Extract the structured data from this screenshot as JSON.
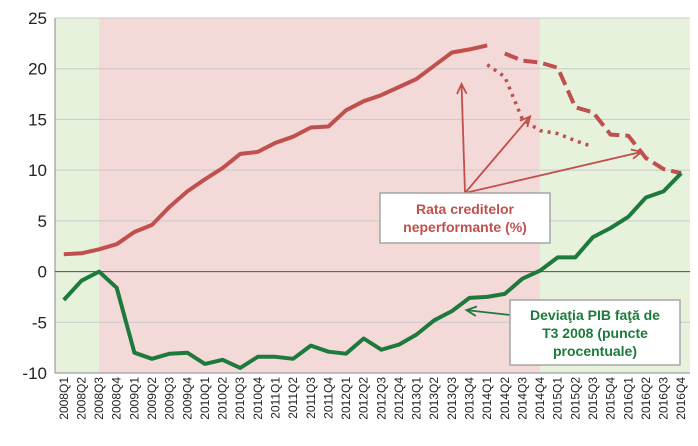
{
  "chart_data": {
    "type": "line",
    "x": [
      "2008Q1",
      "2008Q2",
      "2008Q3",
      "2008Q4",
      "2009Q1",
      "2009Q2",
      "2009Q3",
      "2009Q4",
      "2010Q1",
      "2010Q2",
      "2010Q3",
      "2010Q4",
      "2011Q1",
      "2011Q2",
      "2011Q3",
      "2011Q4",
      "2012Q1",
      "2012Q2",
      "2012Q3",
      "2012Q4",
      "2013Q1",
      "2013Q2",
      "2013Q3",
      "2013Q4",
      "2014Q1",
      "2014Q2",
      "2014Q3",
      "2014Q4",
      "2015Q1",
      "2015Q2",
      "2015Q3",
      "2015Q4",
      "2016Q1",
      "2016Q2",
      "2016Q3",
      "2016Q4"
    ],
    "ylim": [
      -10,
      25
    ],
    "yticks": [
      -10,
      -5,
      0,
      5,
      10,
      15,
      20,
      25
    ],
    "grid": true,
    "shaded_regions": [
      {
        "from": "2008Q1",
        "to": "2008Q3",
        "color": "#e6f2dc"
      },
      {
        "from": "2008Q3",
        "to": "2014Q4",
        "color": "#f4d9d9"
      },
      {
        "from": "2014Q4",
        "to": "2016Q4",
        "color": "#e6f2dc"
      }
    ],
    "series": [
      {
        "style": "solid",
        "color": "#c0504d",
        "values": [
          1.7,
          1.8,
          2.2,
          2.7,
          3.9,
          4.6,
          6.4,
          7.9,
          9.1,
          10.2,
          11.6,
          11.8,
          12.7,
          13.3,
          14.2,
          14.3,
          15.9,
          16.8,
          17.4,
          18.2,
          19.0,
          20.3,
          21.6,
          21.9,
          22.3,
          null,
          null,
          null,
          null,
          null,
          null,
          null,
          null,
          null,
          null,
          null
        ]
      },
      {
        "style": "dashed",
        "color": "#c0504d",
        "values": [
          null,
          null,
          null,
          null,
          null,
          null,
          null,
          null,
          null,
          null,
          null,
          null,
          null,
          null,
          null,
          null,
          null,
          null,
          null,
          null,
          null,
          null,
          null,
          null,
          null,
          21.5,
          20.8,
          20.6,
          20.1,
          16.2,
          15.7,
          13.5,
          13.4,
          11.2,
          10.1,
          9.7
        ]
      },
      {
        "style": "dotted",
        "color": "#c0504d",
        "values": [
          null,
          null,
          null,
          null,
          null,
          null,
          null,
          null,
          null,
          null,
          null,
          null,
          null,
          null,
          null,
          null,
          null,
          null,
          null,
          null,
          null,
          null,
          null,
          null,
          20.4,
          19.2,
          15.0,
          13.9,
          13.6,
          12.9,
          12.3,
          null,
          null,
          null,
          null,
          null
        ]
      },
      {
        "style": "solid",
        "color": "#1e7a3c",
        "values": [
          -2.8,
          -0.9,
          0.0,
          -1.6,
          -8.0,
          -8.6,
          -8.1,
          -8.0,
          -9.1,
          -8.7,
          -9.5,
          -8.4,
          -8.4,
          -8.6,
          -7.3,
          -7.9,
          -8.1,
          -6.6,
          -7.7,
          -7.2,
          -6.2,
          -4.8,
          -3.9,
          -2.6,
          -2.5,
          -2.2,
          -0.7,
          0.1,
          1.4,
          1.4,
          3.4,
          4.3,
          5.4,
          7.3,
          7.9,
          9.7
        ]
      }
    ],
    "annotations": [
      {
        "lines": [
          "Rata creditelor",
          "neperformante (%)"
        ],
        "color": "#c0504d"
      },
      {
        "lines": [
          "Deviaţia PIB faţă de",
          "T3 2008 (puncte",
          "procentuale)"
        ],
        "color": "#1e7a3c"
      }
    ]
  }
}
